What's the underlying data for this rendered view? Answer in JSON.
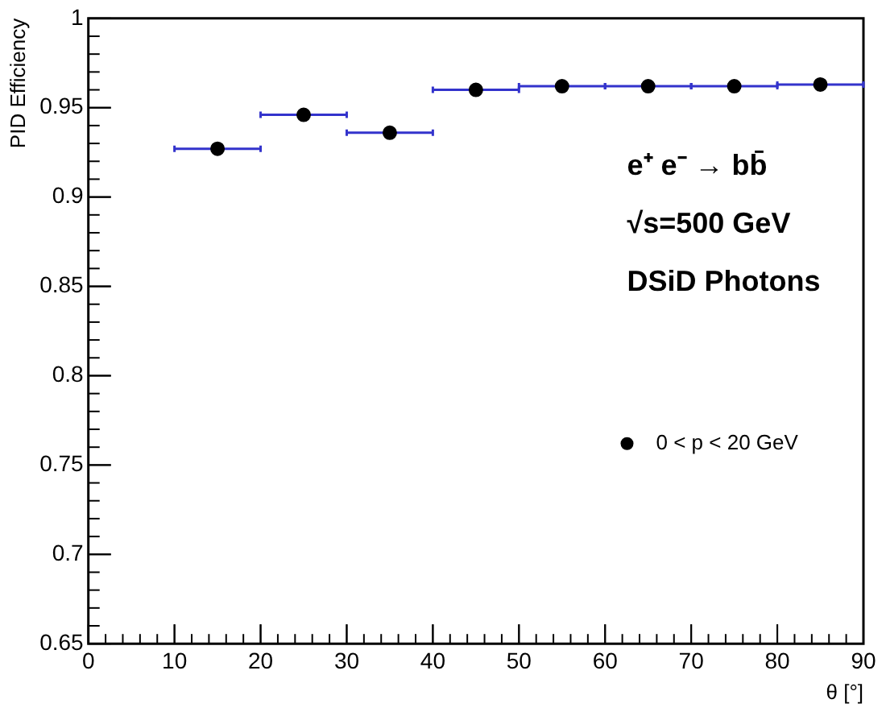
{
  "chart_data": {
    "type": "scatter",
    "xlabel": "θ [°]",
    "ylabel": "PID Efficiency",
    "annotations": [
      "e⁺ e⁻ → bb̄",
      "√s=500 GeV",
      "DSiD Photons"
    ],
    "x": [
      15,
      25,
      35,
      45,
      55,
      65,
      75,
      85
    ],
    "series": [
      {
        "name": "0 < p < 20 GeV",
        "color": "#000000",
        "values": [
          0.927,
          0.946,
          0.936,
          0.96,
          0.962,
          0.962,
          0.962,
          0.963
        ],
        "xerrors": [
          5,
          5,
          5,
          5,
          5,
          5,
          5,
          5
        ]
      }
    ],
    "xlim": [
      0,
      90
    ],
    "xticks": [
      0,
      10,
      20,
      30,
      40,
      50,
      60,
      70,
      80,
      90
    ],
    "ylim": [
      0.65,
      1
    ],
    "yticks": [
      0.65,
      0.7,
      0.75,
      0.8,
      0.85,
      0.9,
      0.95,
      1
    ],
    "grid": false,
    "legend": "right",
    "marker": "circle"
  }
}
